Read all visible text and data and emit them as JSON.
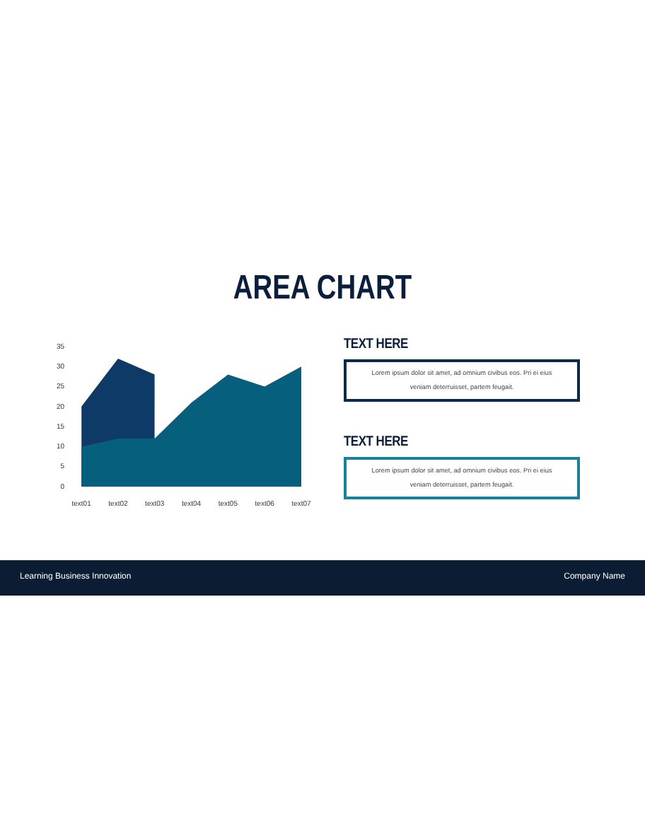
{
  "chart_data": {
    "type": "area",
    "title": "AREA CHART",
    "categories": [
      "text01",
      "text02",
      "text03",
      "text04",
      "text05",
      "text06",
      "text07"
    ],
    "series": [
      {
        "color": "#0d3a66",
        "values": [
          20,
          32,
          28,
          null,
          null,
          null,
          null
        ]
      },
      {
        "color": "#065f7d",
        "values": [
          10,
          12,
          12,
          21,
          28,
          25,
          30
        ]
      }
    ],
    "ylim": [
      0,
      35
    ],
    "yticks": [
      0,
      5,
      10,
      15,
      20,
      25,
      30,
      35
    ],
    "grid": false,
    "legend": false,
    "annotations": [
      "TEXT HERE",
      "Lorem ipsum dolor sit amet, ad omnium civibus eos. Pri ei eius veniam deterruisset, partem feugait.",
      "TEXT HERE",
      "Lorem ipsum dolor sit amet, ad omnium civibus eos. Pri ei eius veniam deterruisset, partem feugait.",
      "Learning Business Innovation",
      "Company Name"
    ]
  }
}
